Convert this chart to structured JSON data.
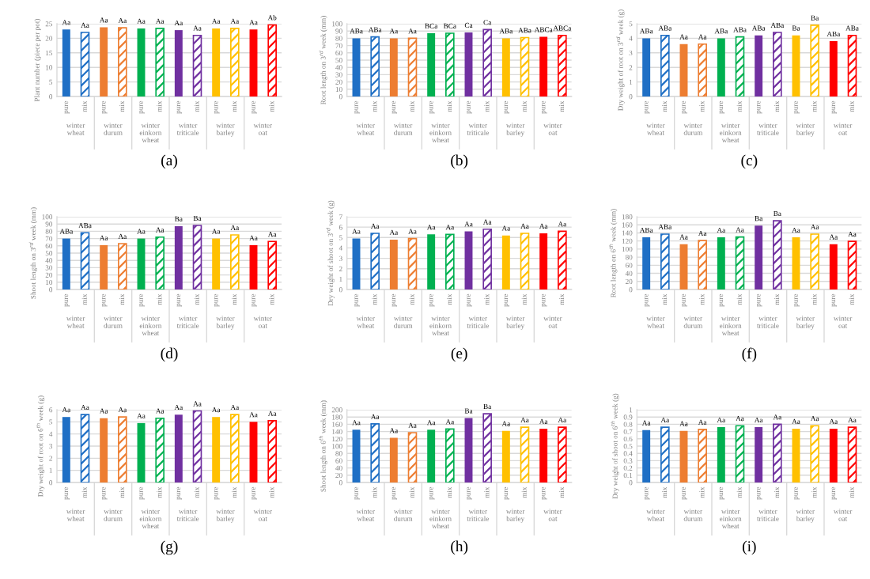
{
  "chart_data": [
    {
      "type": "bar",
      "title": "(a)",
      "ylabel": "Plant number (piece per pot)",
      "categories": [
        "pure",
        "mix",
        "pure",
        "mix",
        "pure",
        "mix",
        "pure",
        "mix",
        "pure",
        "mix",
        "pure",
        "mix"
      ],
      "ylim": [
        0,
        25
      ],
      "yticks": [
        0,
        5,
        10,
        15,
        20,
        25
      ],
      "grid": "y",
      "annotations": [
        "winter wheat",
        "winter durum",
        "winter einkorn wheat",
        "winter triticale",
        "winter barley",
        "winter oat"
      ],
      "series": [
        {
          "values": [
            23,
            null,
            23.8,
            null,
            23.4,
            null,
            22.8,
            null,
            23.4,
            null,
            23,
            null
          ],
          "colors": [
            "#1f6fc5",
            null,
            "#ed7d31",
            null,
            "#00b050",
            null,
            "#7030a0",
            null,
            "#ffc000",
            null,
            "#ff0000",
            null
          ],
          "value_labels": [
            "Aa",
            null,
            "Aa",
            null,
            "Aa",
            null,
            "Aa",
            null,
            "Aa",
            null,
            "Aa",
            null
          ]
        },
        {
          "values": [
            null,
            22,
            null,
            23.6,
            null,
            23.4,
            null,
            21,
            null,
            23.4,
            null,
            24.6
          ],
          "colors": [
            null,
            "#1f6fc5",
            null,
            "#ed7d31",
            null,
            "#00b050",
            null,
            "#7030a0",
            null,
            "#ffc000",
            null,
            "#ff0000"
          ],
          "value_labels": [
            null,
            "Aa",
            null,
            "Aa",
            null,
            "Aa",
            null,
            "Aa",
            null,
            "Aa",
            null,
            "Ab"
          ]
        }
      ]
    },
    {
      "type": "bar",
      "title": "(b)",
      "ylabel": "Root length on 3$^{rd}$ week (mm)",
      "categories": [
        "pure",
        "mix",
        "pure",
        "mix",
        "pure",
        "mix",
        "pure",
        "mix",
        "pure",
        "mix",
        "pure",
        "mix"
      ],
      "ylim": [
        0,
        100
      ],
      "yticks": [
        0,
        10,
        20,
        30,
        40,
        50,
        60,
        70,
        80,
        90,
        100
      ],
      "grid": "y",
      "annotations": [
        "winter wheat",
        "winter durum",
        "winter einkorn wheat",
        "winter triticale",
        "winter barley",
        "winter oat"
      ],
      "series": [
        {
          "values": [
            80,
            null,
            80,
            null,
            87,
            null,
            88,
            null,
            80,
            null,
            82,
            null
          ],
          "colors": [
            "#1f6fc5",
            null,
            "#ed7d31",
            null,
            "#00b050",
            null,
            "#7030a0",
            null,
            "#ffc000",
            null,
            "#ff0000",
            null
          ],
          "value_labels": [
            "ABa",
            null,
            "Aa",
            null,
            "BCa",
            null,
            "Ca",
            null,
            "ABa",
            null,
            "ABCa",
            null
          ]
        },
        {
          "values": [
            null,
            82,
            null,
            80,
            null,
            87,
            null,
            92,
            null,
            81,
            null,
            84
          ],
          "colors": [
            null,
            "#1f6fc5",
            null,
            "#ed7d31",
            null,
            "#00b050",
            null,
            "#7030a0",
            null,
            "#ffc000",
            null,
            "#ff0000"
          ],
          "value_labels": [
            null,
            "ABa",
            null,
            "Aa",
            null,
            "BCa",
            null,
            "Ca",
            null,
            "ABa",
            null,
            "ABCa"
          ]
        }
      ]
    },
    {
      "type": "bar",
      "title": "(c)",
      "ylabel": "Dry weight of root on 3$^{rd}$ week (g)",
      "categories": [
        "pure",
        "mix",
        "pure",
        "mix",
        "pure",
        "mix",
        "pure",
        "mix",
        "pure",
        "mix",
        "pure",
        "mix"
      ],
      "ylim": [
        0,
        5
      ],
      "yticks": [
        0,
        1,
        2,
        3,
        4,
        5
      ],
      "grid": "y",
      "annotations": [
        "winter wheat",
        "winter durum",
        "winter einkorn wheat",
        "winter triticale",
        "winter barley",
        "winter oat"
      ],
      "series": [
        {
          "values": [
            4.0,
            null,
            3.6,
            null,
            4.0,
            null,
            4.2,
            null,
            4.2,
            null,
            3.8,
            null
          ],
          "colors": [
            "#1f6fc5",
            null,
            "#ed7d31",
            null,
            "#00b050",
            null,
            "#7030a0",
            null,
            "#ffc000",
            null,
            "#ff0000",
            null
          ],
          "value_labels": [
            "ABa",
            null,
            "Aa",
            null,
            "ABa",
            null,
            "ABa",
            null,
            "Ba",
            null,
            "ABa",
            null
          ]
        },
        {
          "values": [
            null,
            4.2,
            null,
            3.6,
            null,
            4.1,
            null,
            4.4,
            null,
            4.9,
            null,
            4.2
          ],
          "colors": [
            null,
            "#1f6fc5",
            null,
            "#ed7d31",
            null,
            "#00b050",
            null,
            "#7030a0",
            null,
            "#ffc000",
            null,
            "#ff0000"
          ],
          "value_labels": [
            null,
            "ABa",
            null,
            "Aa",
            null,
            "ABa",
            null,
            "ABa",
            null,
            "Ba",
            null,
            "ABa"
          ]
        }
      ]
    },
    {
      "type": "bar",
      "title": "(d)",
      "ylabel": "Shoot length on 3$^{rd}$ week (mm)",
      "categories": [
        "pure",
        "mix",
        "pure",
        "mix",
        "pure",
        "mix",
        "pure",
        "mix",
        "pure",
        "mix",
        "pure",
        "mix"
      ],
      "ylim": [
        0,
        100
      ],
      "yticks": [
        0,
        10,
        20,
        30,
        40,
        50,
        60,
        70,
        80,
        90,
        100
      ],
      "grid": "y",
      "annotations": [
        "winter wheat",
        "winter durum",
        "winter einkorn wheat",
        "winter triticale",
        "winter barley",
        "winter oat"
      ],
      "series": [
        {
          "values": [
            70,
            null,
            61,
            null,
            70,
            null,
            87,
            null,
            70,
            null,
            61,
            null
          ],
          "colors": [
            "#1f6fc5",
            null,
            "#ed7d31",
            null,
            "#00b050",
            null,
            "#7030a0",
            null,
            "#ffc000",
            null,
            "#ff0000",
            null
          ],
          "value_labels": [
            "ABa",
            null,
            "Aa",
            null,
            "Aa",
            null,
            "Ba",
            null,
            "Aa",
            null,
            "Aa",
            null
          ]
        },
        {
          "values": [
            null,
            78,
            null,
            63,
            null,
            72,
            null,
            88,
            null,
            75,
            null,
            66
          ],
          "colors": [
            null,
            "#1f6fc5",
            null,
            "#ed7d31",
            null,
            "#00b050",
            null,
            "#7030a0",
            null,
            "#ffc000",
            null,
            "#ff0000"
          ],
          "value_labels": [
            null,
            "ABa",
            null,
            "Aa",
            null,
            "Aa",
            null,
            "Ba",
            null,
            "Aa",
            null,
            "Aa"
          ]
        }
      ]
    },
    {
      "type": "bar",
      "title": "(e)",
      "ylabel": "Dry weight of shoot on 3$^{rd}$ week (g)",
      "categories": [
        "pure",
        "mix",
        "pure",
        "mix",
        "pure",
        "mix",
        "pure",
        "mix",
        "pure",
        "mix",
        "pure",
        "mix"
      ],
      "ylim": [
        0,
        7
      ],
      "yticks": [
        0,
        1,
        2,
        3,
        4,
        5,
        6,
        7
      ],
      "grid": "y",
      "annotations": [
        "winter wheat",
        "winter durum",
        "winter einkorn wheat",
        "winter triticale",
        "winter barley",
        "winter oat"
      ],
      "series": [
        {
          "values": [
            4.9,
            null,
            4.8,
            null,
            5.3,
            null,
            5.6,
            null,
            5.2,
            null,
            5.4,
            null
          ],
          "colors": [
            "#1f6fc5",
            null,
            "#ed7d31",
            null,
            "#00b050",
            null,
            "#7030a0",
            null,
            "#ffc000",
            null,
            "#ff0000",
            null
          ],
          "value_labels": [
            "Aa",
            null,
            "Aa",
            null,
            "Aa",
            null,
            "Aa",
            null,
            "Aa",
            null,
            "Aa",
            null
          ]
        },
        {
          "values": [
            null,
            5.4,
            null,
            4.9,
            null,
            5.3,
            null,
            5.8,
            null,
            5.4,
            null,
            5.6
          ],
          "colors": [
            null,
            "#1f6fc5",
            null,
            "#ed7d31",
            null,
            "#00b050",
            null,
            "#7030a0",
            null,
            "#ffc000",
            null,
            "#ff0000"
          ],
          "value_labels": [
            null,
            "Aa",
            null,
            "Aa",
            null,
            "Aa",
            null,
            "Aa",
            null,
            "Aa",
            null,
            "Aa"
          ]
        }
      ]
    },
    {
      "type": "bar",
      "title": "(f)",
      "ylabel": "Root length on 6$^{th}$ week (mm)",
      "categories": [
        "pure",
        "mix",
        "pure",
        "mix",
        "pure",
        "mix",
        "pure",
        "mix",
        "pure",
        "mix",
        "pure",
        "mix"
      ],
      "ylim": [
        0,
        180
      ],
      "yticks": [
        0,
        20,
        40,
        60,
        80,
        100,
        120,
        140,
        160,
        180
      ],
      "grid": "y",
      "annotations": [
        "winter wheat",
        "winter durum",
        "winter einkorn wheat",
        "winter triticale",
        "winter barley",
        "winter oat"
      ],
      "series": [
        {
          "values": [
            129,
            null,
            112,
            null,
            129,
            null,
            158,
            null,
            129,
            null,
            112,
            null
          ],
          "colors": [
            "#1f6fc5",
            null,
            "#ed7d31",
            null,
            "#00b050",
            null,
            "#7030a0",
            null,
            "#ffc000",
            null,
            "#ff0000",
            null
          ],
          "value_labels": [
            "ABa",
            null,
            "Aa",
            null,
            "Aa",
            null,
            "Ba",
            null,
            "Aa",
            null,
            "Aa",
            null
          ]
        },
        {
          "values": [
            null,
            137,
            null,
            121,
            null,
            130,
            null,
            170,
            null,
            137,
            null,
            119
          ],
          "colors": [
            null,
            "#1f6fc5",
            null,
            "#ed7d31",
            null,
            "#00b050",
            null,
            "#7030a0",
            null,
            "#ffc000",
            null,
            "#ff0000"
          ],
          "value_labels": [
            null,
            "ABa",
            null,
            "Aa",
            null,
            "Aa",
            null,
            "Ba",
            null,
            "Aa",
            null,
            "Aa"
          ]
        }
      ]
    },
    {
      "type": "bar",
      "title": "(g)",
      "ylabel": "Dry weight of root on 6$^{th}$ week (g)",
      "categories": [
        "pure",
        "mix",
        "pure",
        "mix",
        "pure",
        "mix",
        "pure",
        "mix",
        "pure",
        "mix",
        "pure",
        "mix"
      ],
      "ylim": [
        0,
        6
      ],
      "yticks": [
        0,
        1,
        2,
        3,
        4,
        5,
        6
      ],
      "grid": "y",
      "annotations": [
        "winter wheat",
        "winter durum",
        "winter einkorn wheat",
        "winter triticale",
        "winter barley",
        "winter oat"
      ],
      "series": [
        {
          "values": [
            5.4,
            null,
            5.3,
            null,
            4.9,
            null,
            5.6,
            null,
            5.4,
            null,
            5.0,
            null
          ],
          "colors": [
            "#1f6fc5",
            null,
            "#ed7d31",
            null,
            "#00b050",
            null,
            "#7030a0",
            null,
            "#ffc000",
            null,
            "#ff0000",
            null
          ],
          "value_labels": [
            "Aa",
            null,
            "Aa",
            null,
            "Aa",
            null,
            "Aa",
            null,
            "Aa",
            null,
            "Aa",
            null
          ]
        },
        {
          "values": [
            null,
            5.6,
            null,
            5.4,
            null,
            5.3,
            null,
            5.9,
            null,
            5.6,
            null,
            5.1
          ],
          "colors": [
            null,
            "#1f6fc5",
            null,
            "#ed7d31",
            null,
            "#00b050",
            null,
            "#7030a0",
            null,
            "#ffc000",
            null,
            "#ff0000"
          ],
          "value_labels": [
            null,
            "Aa",
            null,
            "Aa",
            null,
            "Aa",
            null,
            "Aa",
            null,
            "Aa",
            null,
            "Aa"
          ]
        }
      ]
    },
    {
      "type": "bar",
      "title": "(h)",
      "ylabel": "Shoot length on 6$^{th}$ week (mm)",
      "categories": [
        "pure",
        "mix",
        "pure",
        "mix",
        "pure",
        "mix",
        "pure",
        "mix",
        "pure",
        "mix",
        "pure",
        "mix"
      ],
      "ylim": [
        0,
        200
      ],
      "yticks": [
        0,
        20,
        40,
        60,
        80,
        100,
        120,
        140,
        160,
        180,
        200
      ],
      "grid": "y",
      "annotations": [
        "winter wheat",
        "winter durum",
        "winter einkorn wheat",
        "winter triticale",
        "winter barley",
        "winter oat"
      ],
      "series": [
        {
          "values": [
            145,
            null,
            123,
            null,
            145,
            null,
            177,
            null,
            142,
            null,
            148,
            null
          ],
          "colors": [
            "#1f6fc5",
            null,
            "#ed7d31",
            null,
            "#00b050",
            null,
            "#7030a0",
            null,
            "#ffc000",
            null,
            "#ff0000",
            null
          ],
          "value_labels": [
            "Aa",
            null,
            "Aa",
            null,
            "Aa",
            null,
            "Ba",
            null,
            "Aa",
            null,
            "Aa",
            null
          ]
        },
        {
          "values": [
            null,
            161,
            null,
            137,
            null,
            147,
            null,
            189,
            null,
            152,
            null,
            152
          ],
          "colors": [
            null,
            "#1f6fc5",
            null,
            "#ed7d31",
            null,
            "#00b050",
            null,
            "#7030a0",
            null,
            "#ffc000",
            null,
            "#ff0000"
          ],
          "value_labels": [
            null,
            "Aa",
            null,
            "Aa",
            null,
            "Aa",
            null,
            "Ba",
            null,
            "Aa",
            null,
            "Aa"
          ]
        }
      ]
    },
    {
      "type": "bar",
      "title": "(i)",
      "ylabel": "Dry weight of shoot on 6$^{th}$ week (g)",
      "categories": [
        "pure",
        "mix",
        "pure",
        "mix",
        "pure",
        "mix",
        "pure",
        "mix",
        "pure",
        "mix",
        "pure",
        "mix"
      ],
      "ylim": [
        0,
        1
      ],
      "yticks": [
        0,
        0.1,
        0.2,
        0.3,
        0.4,
        0.5,
        0.6,
        0.7,
        0.8,
        0.9,
        1
      ],
      "grid": "y",
      "annotations": [
        "winter wheat",
        "winter durum",
        "winter einkorn wheat",
        "winter triticale",
        "winter barley",
        "winter oat"
      ],
      "series": [
        {
          "values": [
            0.72,
            null,
            0.71,
            null,
            0.76,
            null,
            0.76,
            null,
            0.74,
            null,
            0.74,
            null
          ],
          "colors": [
            "#1f6fc5",
            null,
            "#ed7d31",
            null,
            "#00b050",
            null,
            "#7030a0",
            null,
            "#ffc000",
            null,
            "#ff0000",
            null
          ],
          "value_labels": [
            "Aa",
            null,
            "Aa",
            null,
            "Aa",
            null,
            "Aa",
            null,
            "Aa",
            null,
            "Aa",
            null
          ]
        },
        {
          "values": [
            null,
            0.76,
            null,
            0.73,
            null,
            0.78,
            null,
            0.8,
            null,
            0.78,
            null,
            0.76
          ],
          "colors": [
            null,
            "#1f6fc5",
            null,
            "#ed7d31",
            null,
            "#00b050",
            null,
            "#7030a0",
            null,
            "#ffc000",
            null,
            "#ff0000"
          ],
          "value_labels": [
            null,
            "Aa",
            null,
            "Aa",
            null,
            "Aa",
            null,
            "Aa",
            null,
            "Aa",
            null,
            "Aa"
          ]
        }
      ]
    }
  ]
}
